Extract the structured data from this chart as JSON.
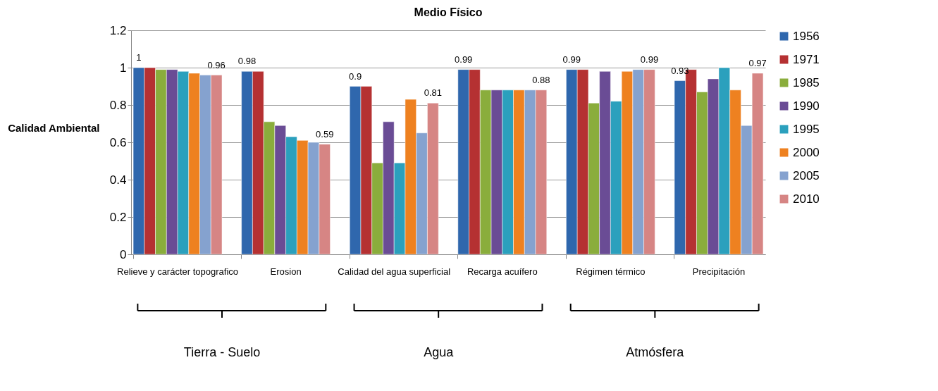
{
  "chart_data": {
    "type": "bar",
    "title": "Medio Físico",
    "ylabel": "Calidad Ambiental",
    "categories": [
      "Relieve y carácter topografico",
      "Erosion",
      "Calidad del agua superficial",
      "Recarga acuífero",
      "Régimen térmico",
      "Precipitación"
    ],
    "series": [
      {
        "name": "1956",
        "color": "#2f67ad",
        "values": [
          1,
          0.98,
          0.9,
          0.99,
          0.99,
          0.93
        ],
        "value_labels": [
          "1",
          "0.98",
          "0.9",
          "0.99",
          "0.99",
          "0.93"
        ]
      },
      {
        "name": "1971",
        "color": "#b53132",
        "values": [
          1,
          0.98,
          0.9,
          0.99,
          0.99,
          0.99
        ]
      },
      {
        "name": "1985",
        "color": "#8aad3c",
        "values": [
          0.99,
          0.71,
          0.49,
          0.88,
          0.81,
          0.87
        ]
      },
      {
        "name": "1990",
        "color": "#6a4c95",
        "values": [
          0.99,
          0.69,
          0.71,
          0.88,
          0.98,
          0.94
        ]
      },
      {
        "name": "1995",
        "color": "#2ba0bd",
        "values": [
          0.98,
          0.63,
          0.49,
          0.88,
          0.82,
          1.0
        ]
      },
      {
        "name": "2000",
        "color": "#ee8120",
        "values": [
          0.97,
          0.61,
          0.83,
          0.88,
          0.98,
          0.88
        ]
      },
      {
        "name": "2005",
        "color": "#85a2cf",
        "values": [
          0.96,
          0.6,
          0.65,
          0.88,
          0.99,
          0.69
        ]
      },
      {
        "name": "2010",
        "color": "#d68584",
        "values": [
          0.96,
          0.59,
          0.81,
          0.88,
          0.99,
          0.97
        ],
        "value_labels": [
          "0.96",
          "0.59",
          "0.81",
          "0.88",
          "0.99",
          "0.97"
        ]
      }
    ],
    "ylim": [
      0,
      1.2
    ],
    "yticks": [
      0,
      0.2,
      0.4,
      0.6,
      0.8,
      1,
      1.2
    ],
    "grid": "y",
    "legend": "right",
    "annotations": [
      "Tierra - Suelo",
      "Agua",
      "Atmósfera"
    ]
  }
}
